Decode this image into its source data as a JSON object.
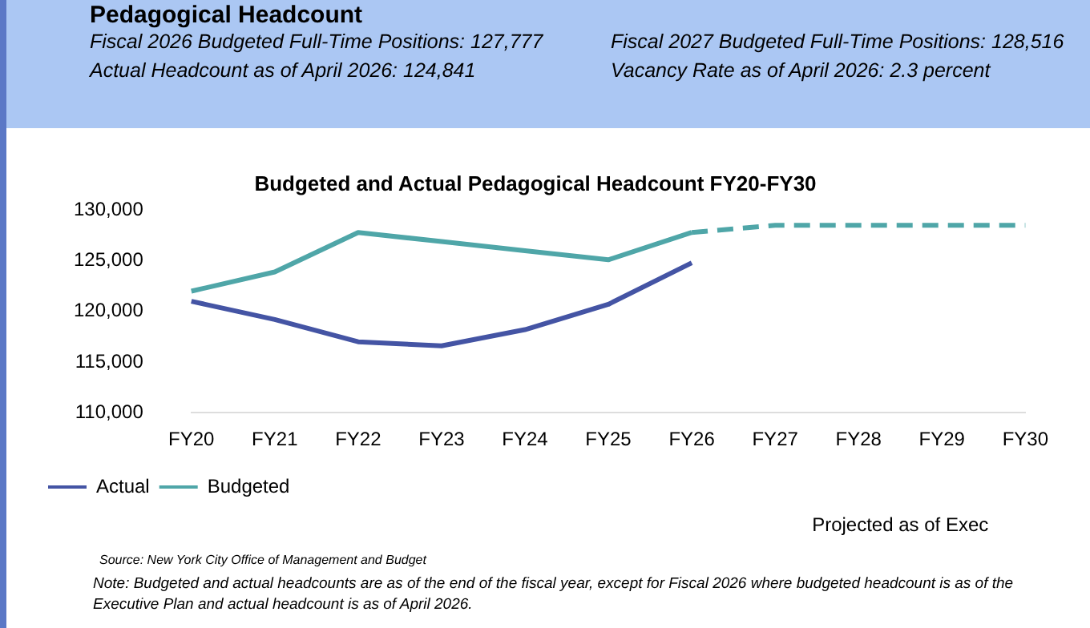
{
  "chart_data": {
    "type": "line",
    "title": "Budgeted and Actual Pedagogical Headcount FY20-FY30",
    "categories": [
      "FY20",
      "FY21",
      "FY22",
      "FY23",
      "FY24",
      "FY25",
      "FY26",
      "FY27",
      "FY28",
      "FY29",
      "FY30"
    ],
    "series": [
      {
        "name": "Actual",
        "color": "#4454a4",
        "values": [
          121000,
          119200,
          117000,
          116600,
          118200,
          120700,
          124800,
          null,
          null,
          null,
          null
        ]
      },
      {
        "name": "Budgeted",
        "color": "#4fa6a8",
        "values": [
          122000,
          123900,
          127800,
          126900,
          126000,
          125100,
          127800,
          null,
          null,
          null,
          null
        ]
      },
      {
        "color": "#4fa6a8",
        "line_style": "dashed",
        "values": [
          null,
          null,
          null,
          null,
          null,
          null,
          127800,
          128500,
          128500,
          128500,
          128500
        ]
      }
    ],
    "ylim": [
      110000,
      130000
    ],
    "yticks": [
      {
        "value": 110000,
        "label": "110,000"
      },
      {
        "value": 115000,
        "label": "115,000"
      },
      {
        "value": 120000,
        "label": "120,000"
      },
      {
        "value": 125000,
        "label": "125,000"
      },
      {
        "value": 130000,
        "label": "130,000"
      }
    ],
    "grid": false,
    "legend": "bottom",
    "marker": "none",
    "line_style": "solid",
    "annotations": [
      "Pedagogical Headcount",
      "Fiscal 2026 Budgeted Full-Time Positions: 127,777",
      "Fiscal 2027 Budgeted Full-Time Positions: 128,516",
      "Actual Headcount as of April 2026: 124,841",
      "Vacancy Rate as of April 2026: 2.3 percent",
      "Projected as of Exec",
      "Source: New York City Office of Management and Budget",
      "Note: Budgeted and actual headcounts are as of the end of the fiscal year, except for Fiscal 2026 where budgeted headcount is as of the Executive Plan and actual headcount is as of April 2026."
    ]
  }
}
